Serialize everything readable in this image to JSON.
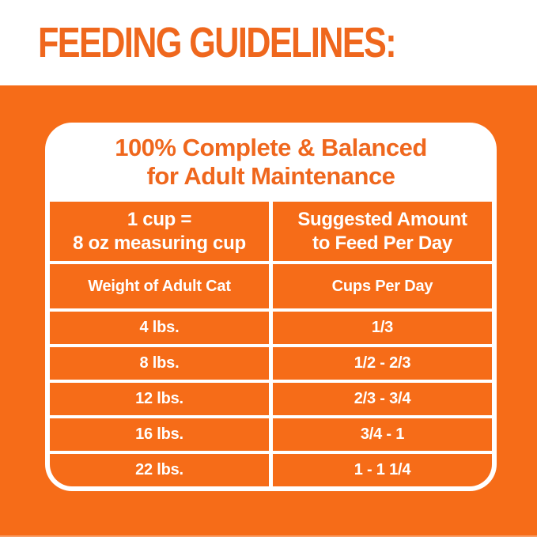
{
  "page": {
    "title": "FEEDING GUIDELINES:"
  },
  "colors": {
    "orange_fill": "#F66C18",
    "orange_text": "#EF671D",
    "line_white": "#FFFFFF",
    "top_edge_line": "#E6E6E6"
  },
  "card": {
    "title_line1": "100% Complete & Balanced",
    "title_line2": "for Adult Maintenance",
    "header": {
      "left_line1": "1 cup =",
      "left_line2": "8 oz measuring cup",
      "right_line1": "Suggested Amount",
      "right_line2": "to Feed Per Day"
    },
    "columns": [
      "Weight of Adult Cat",
      "Cups Per Day"
    ],
    "rows": [
      {
        "weight": "4 lbs.",
        "cups": "1/3"
      },
      {
        "weight": "8 lbs.",
        "cups": "1/2 - 2/3"
      },
      {
        "weight": "12 lbs.",
        "cups": "2/3 - 3/4"
      },
      {
        "weight": "16 lbs.",
        "cups": "3/4 - 1"
      },
      {
        "weight": "22 lbs.",
        "cups": "1 - 1 1/4"
      }
    ]
  },
  "chart_data": {
    "type": "table",
    "title": "FEEDING GUIDELINES: 100% Complete & Balanced for Adult Maintenance",
    "note": "1 cup = 8 oz measuring cup",
    "value_label": "Suggested Amount to Feed Per Day",
    "columns": [
      "Weight of Adult Cat",
      "Cups Per Day"
    ],
    "rows": [
      [
        "4 lbs.",
        "1/3"
      ],
      [
        "8 lbs.",
        "1/2 - 2/3"
      ],
      [
        "12 lbs.",
        "2/3 - 3/4"
      ],
      [
        "16 lbs.",
        "3/4 - 1"
      ],
      [
        "22 lbs.",
        "1 - 1 1/4"
      ]
    ]
  }
}
